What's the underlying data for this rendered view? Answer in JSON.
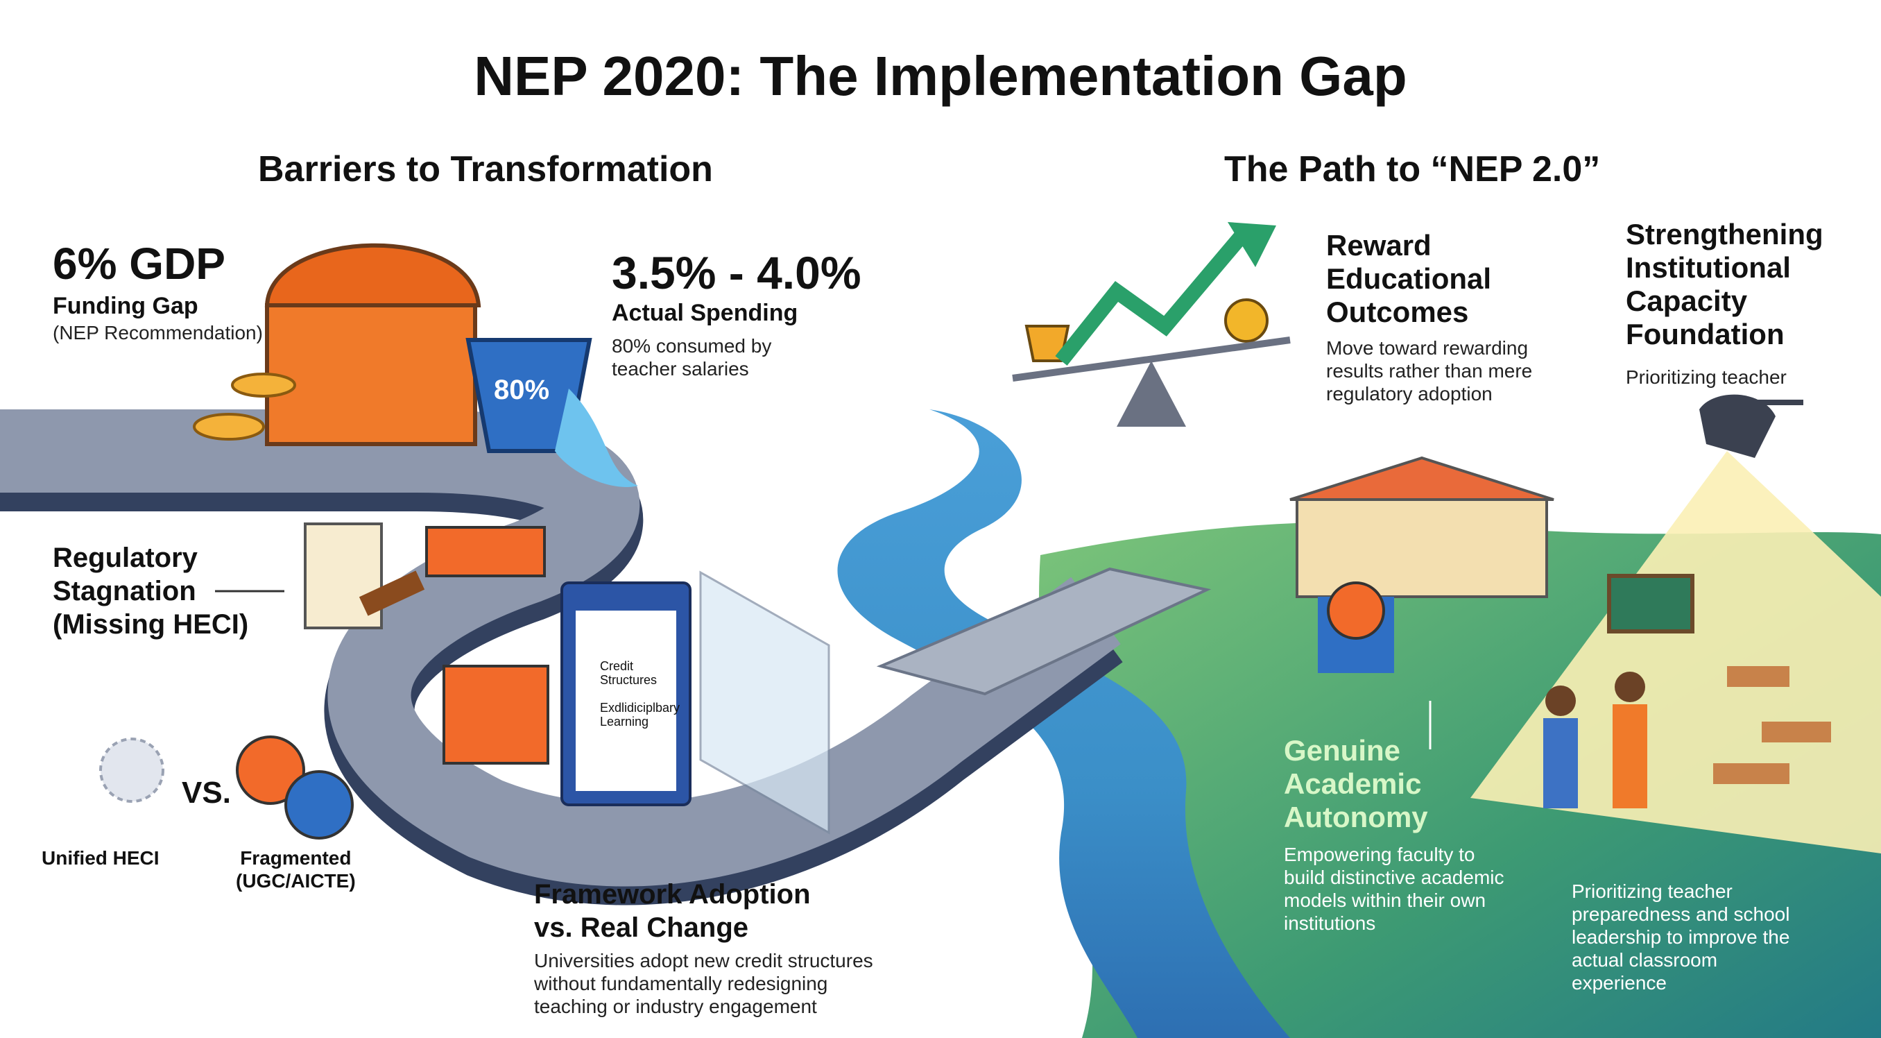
{
  "title": "NEP 2020: The Implementation Gap",
  "barriers": {
    "heading": "Barriers to Transformation",
    "funding": {
      "stat": "6% GDP",
      "label": "Funding Gap",
      "note": "(NEP Recommendation)"
    },
    "bucket": "80%",
    "spending": {
      "stat": "3.5% - 4.0%",
      "label": "Actual Spending",
      "note": "80% consumed by\nteacher salaries"
    },
    "regulatory": {
      "label": "Regulatory\nStagnation\n(Missing HECI)",
      "unified": "Unified HECI",
      "vs": "VS.",
      "fragmented": "Fragmented\n(UGC/AICTE)"
    },
    "clipboard": [
      "Credit\nStructures",
      "Exdlidiciplbary\nLearning"
    ],
    "framework": {
      "label": "Framework Adoption\nvs. Real Change",
      "note": "Universities adopt new credit structures\nwithout fundamentally redesigning\nteaching or industry engagement"
    }
  },
  "path": {
    "heading": "The Path to “NEP 2.0”",
    "reward": {
      "label": "Reward\nEducational\nOutcomes",
      "note": "Move toward rewarding\nresults rather than mere\nregulatory adoption"
    },
    "capacity": {
      "label": "Strengthening\nInstitutional\nCapacity\nFoundation",
      "note": "Prioritizing teacher"
    },
    "autonomy": {
      "label": "Genuine\nAcademic\nAutonomy",
      "note": "Empowering faculty to\nbuild distinctive academic\nmodels within their own\ninstitutions"
    },
    "teacher": {
      "note": "Prioritizing teacher\npreparedness and school\nleadership to improve the\nactual classroom\nexperience"
    }
  }
}
